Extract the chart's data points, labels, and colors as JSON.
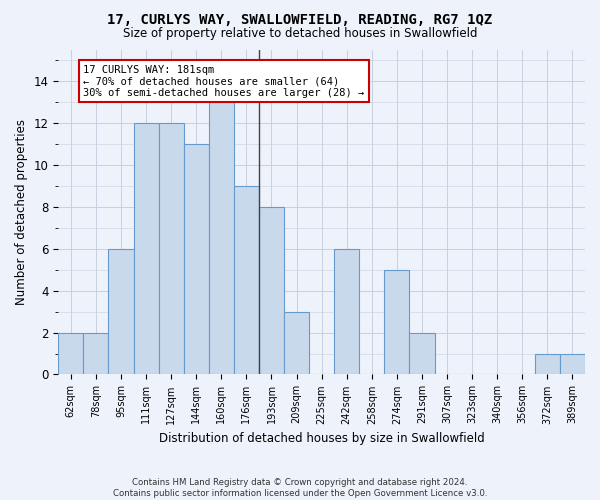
{
  "title": "17, CURLYS WAY, SWALLOWFIELD, READING, RG7 1QZ",
  "subtitle": "Size of property relative to detached houses in Swallowfield",
  "xlabel": "Distribution of detached houses by size in Swallowfield",
  "ylabel": "Number of detached properties",
  "categories": [
    "62sqm",
    "78sqm",
    "95sqm",
    "111sqm",
    "127sqm",
    "144sqm",
    "160sqm",
    "176sqm",
    "193sqm",
    "209sqm",
    "225sqm",
    "242sqm",
    "258sqm",
    "274sqm",
    "291sqm",
    "307sqm",
    "323sqm",
    "340sqm",
    "356sqm",
    "372sqm",
    "389sqm"
  ],
  "values": [
    2,
    2,
    6,
    12,
    12,
    11,
    13,
    9,
    8,
    3,
    0,
    6,
    0,
    5,
    2,
    0,
    0,
    0,
    0,
    1,
    1
  ],
  "bar_color": "#c9d9ec",
  "bar_edge_color": "#6699cc",
  "annotation_line1": "17 CURLYS WAY: 181sqm",
  "annotation_line2": "← 70% of detached houses are smaller (64)",
  "annotation_line3": "30% of semi-detached houses are larger (28) →",
  "annotation_box_color": "#ffffff",
  "annotation_box_edge": "#cc0000",
  "vline_x": 7.5,
  "ylim": [
    0,
    15.5
  ],
  "yticks": [
    0,
    2,
    4,
    6,
    8,
    10,
    12,
    14
  ],
  "grid_color": "#c8d0e0",
  "bg_color": "#eef2fa",
  "footnote1": "Contains HM Land Registry data © Crown copyright and database right 2024.",
  "footnote2": "Contains public sector information licensed under the Open Government Licence v3.0."
}
